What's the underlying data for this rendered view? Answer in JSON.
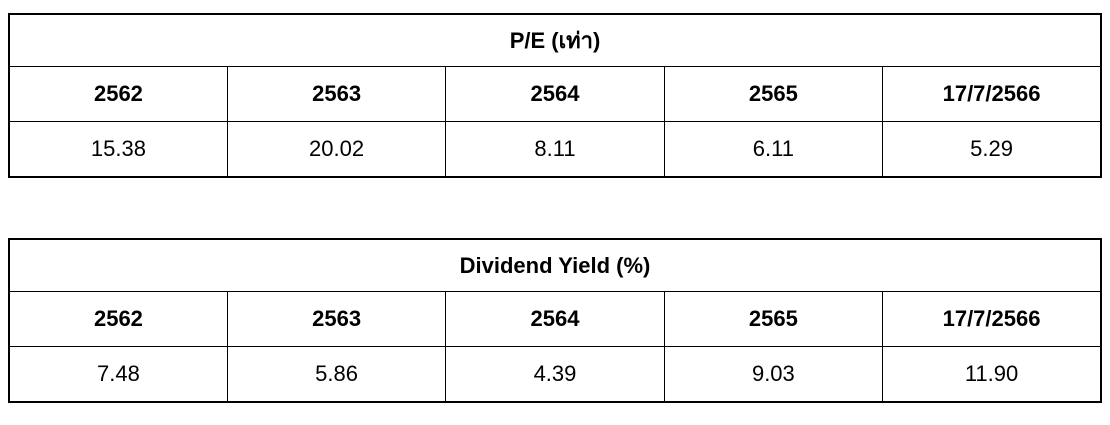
{
  "colors": {
    "text": "#000000",
    "border": "#000000",
    "background": "#ffffff"
  },
  "chart_data": [
    {
      "type": "table",
      "title": "P/E (เท่า)",
      "categories": [
        "2562",
        "2563",
        "2564",
        "2565",
        "17/7/2566"
      ],
      "values": [
        "15.38",
        "20.02",
        "8.11",
        "6.11",
        "5.29"
      ]
    },
    {
      "type": "table",
      "title": "Dividend Yield (%)",
      "categories": [
        "2562",
        "2563",
        "2564",
        "2565",
        "17/7/2566"
      ],
      "values": [
        "7.48",
        "5.86",
        "4.39",
        "9.03",
        "11.90"
      ]
    }
  ]
}
